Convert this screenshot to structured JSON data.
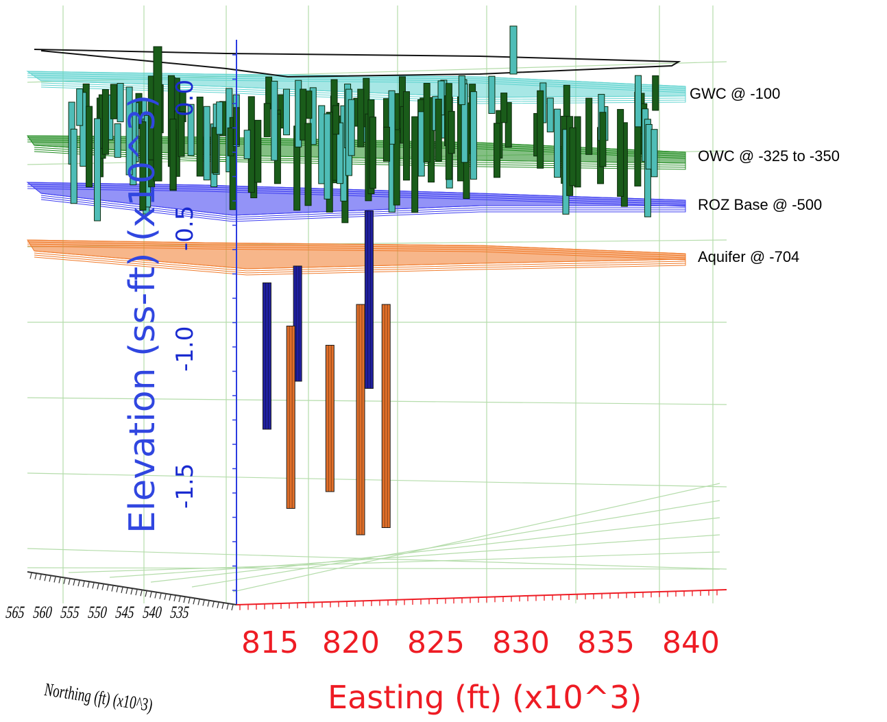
{
  "chart_data": {
    "type": "3d-well-plot",
    "x_axis": {
      "label": "Easting (ft) (x10^3)",
      "ticks": [
        "815",
        "820",
        "825",
        "830",
        "835",
        "840"
      ],
      "range": [
        813,
        842
      ]
    },
    "y_axis": {
      "label": "Northing (ft) (x10^3)",
      "ticks": [
        "565",
        "560",
        "555",
        "550",
        "545",
        "540",
        "535"
      ]
    },
    "z_axis": {
      "label": "Elevation (ss-ft) (x10^3)",
      "ticks": [
        "0.0",
        "-0.5",
        "-1.0",
        "-1.5"
      ],
      "range": [
        -2.05,
        0.3
      ]
    },
    "surfaces": [
      {
        "name": "GWC @ -100",
        "color": "#5fd3cf"
      },
      {
        "name": "OWC @ -325 to -350",
        "color": "#1e8a1e"
      },
      {
        "name": "ROZ Base @ -500",
        "color": "#3b3bf0"
      },
      {
        "name": "Aquifer @ -704",
        "color": "#f07a2a"
      }
    ],
    "deep_wells": [
      {
        "easting": 816.2,
        "top": -0.75,
        "bottom": -1.36,
        "color": "#2020a0"
      },
      {
        "easting": 818.0,
        "top": -0.68,
        "bottom": -1.16,
        "color": "#2020a0"
      },
      {
        "easting": 822.2,
        "top": -0.45,
        "bottom": -1.19,
        "color": "#2020a0"
      },
      {
        "easting": 817.6,
        "top": -0.93,
        "bottom": -1.69,
        "color": "#e2702a"
      },
      {
        "easting": 819.9,
        "top": -1.01,
        "bottom": -1.62,
        "color": "#e2702a"
      },
      {
        "easting": 821.7,
        "top": -0.84,
        "bottom": -1.8,
        "color": "#e2702a"
      },
      {
        "easting": 823.2,
        "top": -0.84,
        "bottom": -1.77,
        "color": "#e2702a"
      }
    ],
    "grid": true
  }
}
